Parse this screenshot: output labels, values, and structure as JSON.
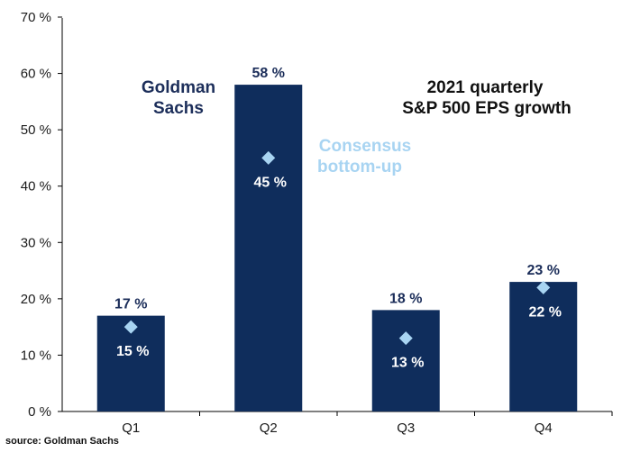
{
  "chart_data": {
    "type": "bar",
    "title": [
      "2021 quarterly",
      "S&P 500 EPS growth"
    ],
    "categories": [
      "Q1",
      "Q2",
      "Q3",
      "Q4"
    ],
    "series": [
      {
        "name": "Goldman Sachs",
        "values": [
          17,
          58,
          18,
          23
        ],
        "labels": [
          "17 %",
          "58 %",
          "18 %",
          "23 %"
        ],
        "color": "#0f2d5c"
      },
      {
        "name": "Consensus bottom-up",
        "values": [
          15,
          45,
          13,
          22
        ],
        "labels": [
          "15 %",
          "45 %",
          "13 %",
          "22 %"
        ],
        "color": "#a8d4f2"
      }
    ],
    "yticks": [
      "0 %",
      "10 %",
      "20 %",
      "30 %",
      "40 %",
      "50 %",
      "60 %",
      "70 %"
    ],
    "ylim": [
      0,
      70
    ],
    "annotations": {
      "goldman": [
        "Goldman",
        "Sachs"
      ],
      "consensus": [
        "Consensus",
        "bottom-up"
      ]
    },
    "grid": false,
    "legend": "inline annotations"
  },
  "source": "source: Goldman Sachs"
}
